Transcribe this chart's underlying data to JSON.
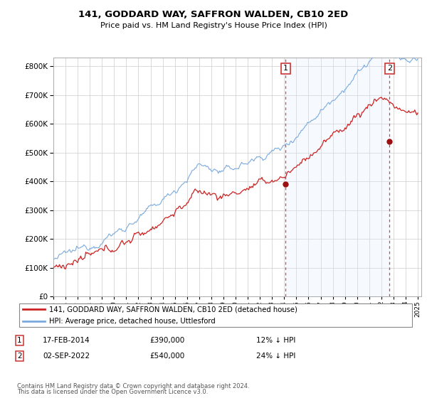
{
  "title": "141, GODDARD WAY, SAFFRON WALDEN, CB10 2ED",
  "subtitle": "Price paid vs. HM Land Registry's House Price Index (HPI)",
  "legend_line1": "141, GODDARD WAY, SAFFRON WALDEN, CB10 2ED (detached house)",
  "legend_line2": "HPI: Average price, detached house, Uttlesford",
  "transaction1_date": "17-FEB-2014",
  "transaction1_price": "£390,000",
  "transaction1_hpi": "12% ↓ HPI",
  "transaction2_date": "02-SEP-2022",
  "transaction2_price": "£540,000",
  "transaction2_hpi": "24% ↓ HPI",
  "footer1": "Contains HM Land Registry data © Crown copyright and database right 2024.",
  "footer2": "This data is licensed under the Open Government Licence v3.0.",
  "hpi_color": "#7aaadd",
  "price_color": "#cc2222",
  "shade_color": "#ddeeff",
  "marker_color": "#991111",
  "vline_color": "#cc3333",
  "background_color": "#ffffff",
  "grid_color": "#cccccc",
  "ylim_min": 0,
  "ylim_max": 830000,
  "start_year": 1995,
  "end_year": 2025,
  "transaction1_year": 2014.12,
  "transaction1_value": 390000,
  "transaction2_year": 2022.67,
  "transaction2_value": 540000
}
